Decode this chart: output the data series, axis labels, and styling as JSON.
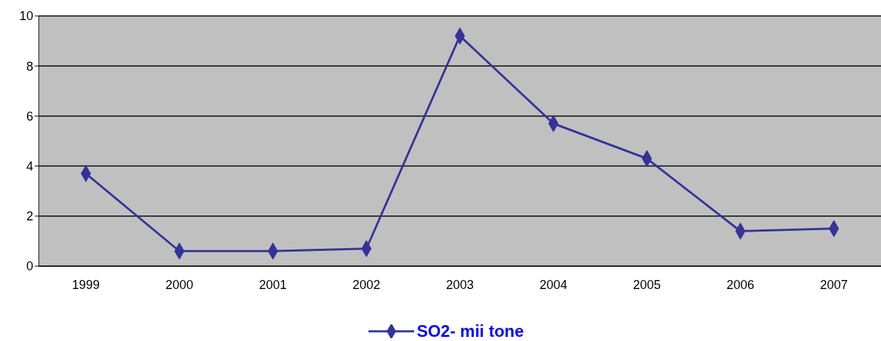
{
  "chart_data": {
    "type": "line",
    "categories": [
      "1999",
      "2000",
      "2001",
      "2002",
      "2003",
      "2004",
      "2005",
      "2006",
      "2007"
    ],
    "series": [
      {
        "name": "SO2- mii tone",
        "color": "#333399",
        "values": [
          3.7,
          0.6,
          0.6,
          0.7,
          9.2,
          5.7,
          4.3,
          1.4,
          1.5
        ]
      }
    ],
    "ylim": [
      0,
      10
    ],
    "yticks": [
      0,
      2,
      4,
      6,
      8,
      10
    ],
    "grid": "y",
    "legend": "bottom",
    "marker": "diamond",
    "line_style": "solid"
  }
}
